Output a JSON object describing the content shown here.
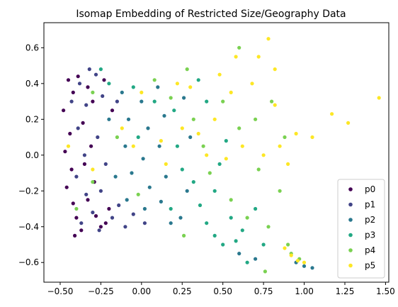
{
  "chart_data": {
    "type": "scatter",
    "title": "Isomap Embedding of Restricted Size/Geography Data",
    "xlabel": "",
    "ylabel": "",
    "xlim": [
      -0.6,
      1.52
    ],
    "ylim": [
      -0.71,
      0.74
    ],
    "x_ticks": [
      -0.5,
      -0.25,
      0.0,
      0.25,
      0.5,
      0.75,
      1.0,
      1.25,
      1.5
    ],
    "x_tick_labels": [
      "−0.50",
      "−0.25",
      "0.00",
      "0.25",
      "0.50",
      "0.75",
      "1.00",
      "1.25",
      "1.50"
    ],
    "y_ticks": [
      -0.6,
      -0.4,
      -0.2,
      0.0,
      0.2,
      0.4,
      0.6
    ],
    "y_tick_labels": [
      "−0.6",
      "−0.4",
      "−0.2",
      "0.0",
      "0.2",
      "0.4",
      "0.6"
    ],
    "grid": false,
    "legend_position": "lower-right",
    "series": [
      {
        "name": "p0",
        "color": "#440154",
        "points": [
          [
            -0.45,
            0.42
          ],
          [
            -0.42,
            0.35
          ],
          [
            -0.48,
            0.25
          ],
          [
            -0.44,
            0.12
          ],
          [
            -0.47,
            0.02
          ],
          [
            -0.43,
            -0.08
          ],
          [
            -0.46,
            -0.18
          ],
          [
            -0.42,
            -0.27
          ],
          [
            -0.4,
            -0.35
          ],
          [
            -0.37,
            -0.42
          ],
          [
            -0.33,
            0.38
          ],
          [
            -0.3,
            0.3
          ],
          [
            -0.36,
            0.18
          ],
          [
            -0.31,
            0.05
          ],
          [
            -0.35,
            -0.05
          ],
          [
            -0.29,
            -0.15
          ],
          [
            -0.33,
            -0.25
          ],
          [
            -0.28,
            -0.34
          ],
          [
            -0.25,
            -0.4
          ],
          [
            -0.22,
            -0.38
          ],
          [
            -0.2,
            -0.3
          ],
          [
            -0.18,
            0.25
          ],
          [
            -0.23,
            0.42
          ],
          [
            -0.39,
            0.44
          ],
          [
            -0.41,
            -0.45
          ]
        ]
      },
      {
        "name": "p1",
        "color": "#414487",
        "points": [
          [
            -0.38,
            0.4
          ],
          [
            -0.34,
            0.28
          ],
          [
            -0.39,
            0.15
          ],
          [
            -0.35,
            0.0
          ],
          [
            -0.4,
            -0.12
          ],
          [
            -0.34,
            -0.22
          ],
          [
            -0.3,
            -0.32
          ],
          [
            -0.26,
            -0.42
          ],
          [
            -0.28,
            0.45
          ],
          [
            -0.24,
            0.33
          ],
          [
            -0.27,
            0.1
          ],
          [
            -0.22,
            -0.05
          ],
          [
            -0.25,
            -0.2
          ],
          [
            -0.18,
            -0.35
          ],
          [
            -0.14,
            -0.28
          ],
          [
            -0.15,
            0.3
          ],
          [
            -0.1,
            -0.4
          ],
          [
            -0.05,
            -0.33
          ],
          [
            0.02,
            -0.38
          ],
          [
            -0.32,
            0.48
          ],
          [
            -0.43,
            0.3
          ],
          [
            -0.37,
            -0.38
          ]
        ]
      },
      {
        "name": "p2",
        "color": "#2a788e",
        "points": [
          [
            -0.12,
            0.35
          ],
          [
            -0.08,
            0.2
          ],
          [
            -0.1,
            0.05
          ],
          [
            -0.06,
            -0.1
          ],
          [
            -0.09,
            -0.25
          ],
          [
            0.0,
            0.3
          ],
          [
            0.04,
            0.15
          ],
          [
            0.01,
            -0.02
          ],
          [
            0.05,
            -0.18
          ],
          [
            0.02,
            -0.3
          ],
          [
            0.1,
            0.38
          ],
          [
            0.14,
            0.22
          ],
          [
            0.11,
            0.05
          ],
          [
            0.15,
            -0.12
          ],
          [
            0.12,
            -0.26
          ],
          [
            0.18,
            -0.38
          ],
          [
            0.24,
            -0.35
          ],
          [
            0.28,
            -0.2
          ],
          [
            0.3,
            0.1
          ],
          [
            0.26,
            0.32
          ],
          [
            0.6,
            -0.55
          ],
          [
            0.95,
            -0.6
          ],
          [
            1.0,
            -0.62
          ],
          [
            1.05,
            -0.63
          ],
          [
            0.7,
            -0.58
          ],
          [
            -0.2,
            0.2
          ],
          [
            -0.16,
            -0.12
          ]
        ]
      },
      {
        "name": "p3",
        "color": "#22a884",
        "points": [
          [
            -0.25,
            0.48
          ],
          [
            -0.2,
            0.4
          ],
          [
            -0.05,
            0.38
          ],
          [
            0.08,
            0.3
          ],
          [
            0.2,
            0.25
          ],
          [
            0.22,
            0.05
          ],
          [
            0.25,
            -0.08
          ],
          [
            0.32,
            -0.15
          ],
          [
            0.36,
            -0.28
          ],
          [
            0.4,
            -0.38
          ],
          [
            0.45,
            -0.45
          ],
          [
            0.5,
            -0.5
          ],
          [
            0.58,
            -0.48
          ],
          [
            0.62,
            -0.42
          ],
          [
            0.55,
            -0.35
          ],
          [
            0.45,
            -0.2
          ],
          [
            0.48,
            -0.05
          ],
          [
            0.52,
            0.08
          ],
          [
            0.4,
            0.3
          ],
          [
            0.35,
            0.42
          ],
          [
            0.65,
            -0.6
          ],
          [
            0.75,
            -0.5
          ],
          [
            0.7,
            -0.3
          ],
          [
            -0.02,
            0.1
          ],
          [
            0.18,
            -0.3
          ]
        ]
      },
      {
        "name": "p4",
        "color": "#7ad151",
        "points": [
          [
            -0.4,
            -0.3
          ],
          [
            -0.3,
            0.35
          ],
          [
            -0.15,
            0.1
          ],
          [
            -0.02,
            -0.22
          ],
          [
            0.08,
            0.42
          ],
          [
            0.18,
            0.32
          ],
          [
            0.28,
            0.48
          ],
          [
            0.32,
            0.2
          ],
          [
            0.38,
            0.05
          ],
          [
            0.42,
            -0.1
          ],
          [
            0.5,
            0.3
          ],
          [
            0.55,
            -0.25
          ],
          [
            0.6,
            0.15
          ],
          [
            0.65,
            -0.35
          ],
          [
            0.7,
            0.2
          ],
          [
            0.72,
            -0.08
          ],
          [
            0.78,
            -0.4
          ],
          [
            0.8,
            0.3
          ],
          [
            0.85,
            -0.2
          ],
          [
            0.88,
            0.1
          ],
          [
            0.9,
            -0.5
          ],
          [
            0.92,
            -0.55
          ],
          [
            0.97,
            -0.58
          ],
          [
            0.76,
            -0.65
          ],
          [
            0.6,
            0.6
          ],
          [
            0.26,
            -0.45
          ],
          [
            -0.3,
            -0.15
          ]
        ]
      },
      {
        "name": "p5",
        "color": "#fde725",
        "points": [
          [
            -0.45,
            0.05
          ],
          [
            -0.3,
            -0.08
          ],
          [
            -0.12,
            0.15
          ],
          [
            -0.05,
            0.05
          ],
          [
            0.0,
            0.35
          ],
          [
            0.12,
            0.08
          ],
          [
            0.15,
            -0.05
          ],
          [
            0.22,
            0.4
          ],
          [
            0.25,
            0.15
          ],
          [
            0.3,
            0.38
          ],
          [
            0.35,
            0.12
          ],
          [
            0.4,
            0.0
          ],
          [
            0.45,
            0.2
          ],
          [
            0.48,
            0.45
          ],
          [
            0.52,
            -0.02
          ],
          [
            0.55,
            0.35
          ],
          [
            0.58,
            0.55
          ],
          [
            0.62,
            0.05
          ],
          [
            0.68,
            0.4
          ],
          [
            0.75,
            0.0
          ],
          [
            0.78,
            0.65
          ],
          [
            0.82,
            0.28
          ],
          [
            0.85,
            0.05
          ],
          [
            0.9,
            -0.05
          ],
          [
            0.95,
            0.12
          ],
          [
            1.05,
            0.1
          ],
          [
            1.17,
            0.23
          ],
          [
            1.27,
            0.18
          ],
          [
            1.46,
            0.32
          ],
          [
            0.88,
            -0.52
          ],
          [
            0.92,
            -0.56
          ],
          [
            0.96,
            -0.59
          ],
          [
            1.0,
            -0.6
          ],
          [
            0.82,
            0.48
          ],
          [
            0.72,
            0.55
          ]
        ]
      }
    ]
  }
}
